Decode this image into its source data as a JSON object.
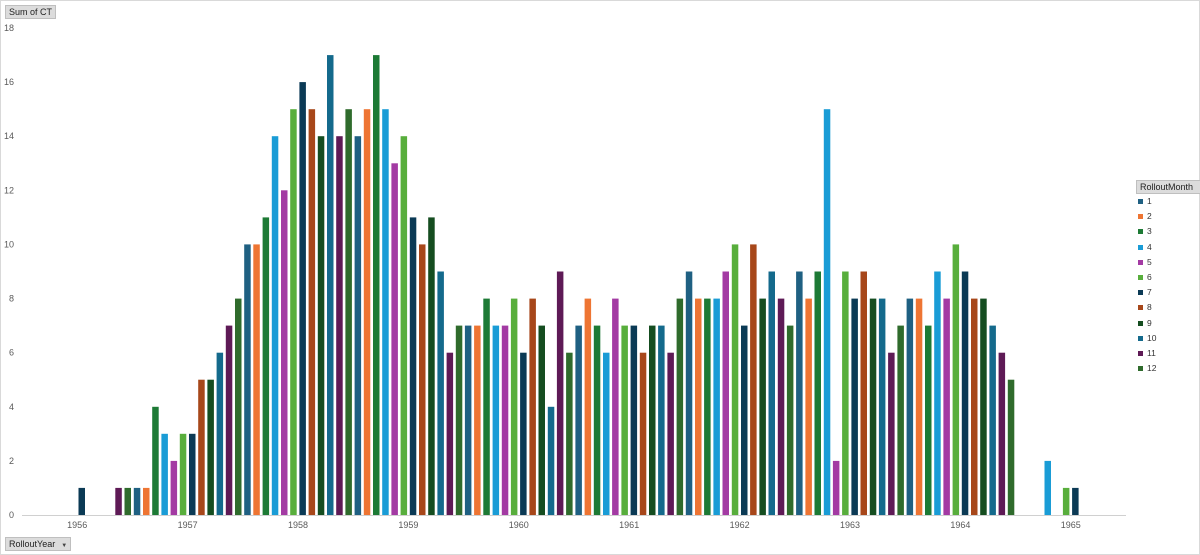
{
  "pivot": {
    "value_field": "Sum of CT",
    "axis_field": "RolloutYear",
    "legend_field": "RolloutMonth"
  },
  "colors": [
    "#1f6082",
    "#ee7533",
    "#1d7a35",
    "#1a9cd6",
    "#a33aa3",
    "#58ae3c",
    "#0b3a55",
    "#a7471a",
    "#154d20",
    "#146a8c",
    "#5e1a56",
    "#2f6b2c"
  ],
  "chart_data": {
    "type": "bar",
    "categories": [
      "1956",
      "1957",
      "1958",
      "1959",
      "1960",
      "1961",
      "1962",
      "1963",
      "1964",
      "1965"
    ],
    "ylim": [
      0,
      18
    ],
    "yticks": [
      0,
      2,
      4,
      6,
      8,
      10,
      12,
      14,
      16,
      18
    ],
    "grid": false,
    "legend_position": "right",
    "series": [
      {
        "name": "1",
        "values": [
          null,
          1,
          10,
          14,
          7,
          7,
          9,
          9,
          8,
          null
        ]
      },
      {
        "name": "2",
        "values": [
          null,
          1,
          10,
          15,
          7,
          8,
          8,
          8,
          8,
          null
        ]
      },
      {
        "name": "3",
        "values": [
          null,
          4,
          11,
          17,
          8,
          7,
          8,
          9,
          7,
          null
        ]
      },
      {
        "name": "4",
        "values": [
          null,
          3,
          14,
          15,
          7,
          6,
          8,
          15,
          9,
          2
        ]
      },
      {
        "name": "5",
        "values": [
          null,
          2,
          12,
          13,
          7,
          8,
          9,
          2,
          8,
          null
        ]
      },
      {
        "name": "6",
        "values": [
          null,
          3,
          15,
          14,
          8,
          7,
          10,
          9,
          10,
          1
        ]
      },
      {
        "name": "7",
        "values": [
          1,
          3,
          16,
          11,
          6,
          7,
          7,
          8,
          9,
          1
        ]
      },
      {
        "name": "8",
        "values": [
          null,
          5,
          15,
          10,
          8,
          6,
          10,
          9,
          8,
          null
        ]
      },
      {
        "name": "9",
        "values": [
          null,
          5,
          14,
          11,
          7,
          7,
          8,
          8,
          8,
          null
        ]
      },
      {
        "name": "10",
        "values": [
          null,
          6,
          17,
          9,
          4,
          7,
          9,
          8,
          7,
          null
        ]
      },
      {
        "name": "11",
        "values": [
          1,
          7,
          14,
          6,
          9,
          6,
          8,
          6,
          6,
          null
        ]
      },
      {
        "name": "12",
        "values": [
          1,
          8,
          15,
          7,
          6,
          8,
          7,
          7,
          5,
          null
        ]
      }
    ]
  }
}
